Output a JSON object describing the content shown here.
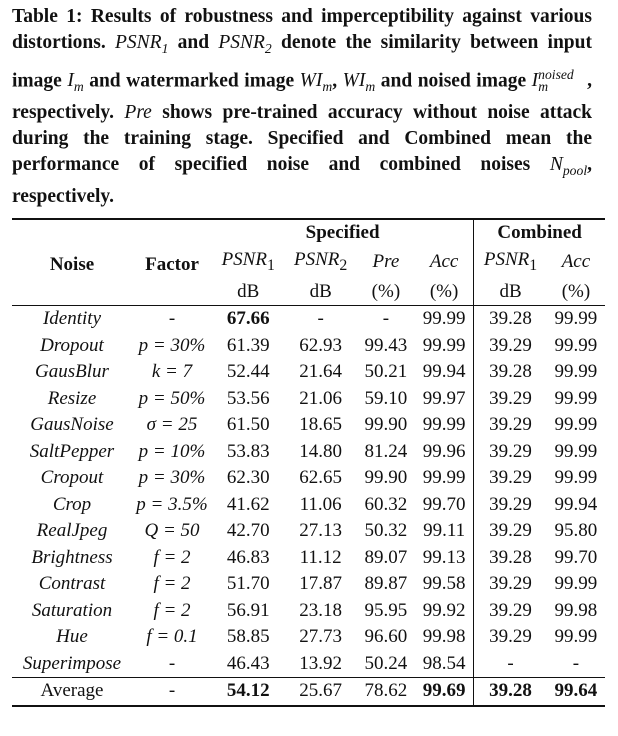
{
  "caption": {
    "label": "Table 1:",
    "text_1": " Results of robustness and imperceptibility against various distortions. ",
    "psnr1": "PSNR",
    "psnr1_sub": "1",
    "text_2": " and ",
    "psnr2": "PSNR",
    "psnr2_sub": "2",
    "text_3": " denote the similarity between input image ",
    "im": "I",
    "im_sub": "m",
    "text_4": " and watermarked image ",
    "wim": "WI",
    "wim_sub": "m",
    "text_5": ", ",
    "wim2": "WI",
    "wim2_sub": "m",
    "text_6": " and noised image ",
    "inoised": "I",
    "inoised_sub": "m",
    "inoised_sup": "noised",
    "text_7": ", respectively. ",
    "pre": "Pre",
    "text_8": " shows pre-trained accuracy without noise attack during the training stage. Specified and Combined mean the performance of specified noise and combined noises ",
    "npool": "N",
    "npool_sub": "pool",
    "text_9": ", respectively."
  },
  "table": {
    "group_specified": "Specified",
    "group_combined": "Combined",
    "col_noise": "Noise",
    "col_factor": "Factor",
    "col_psnr1": "PSNR",
    "col_psnr1_sub": "1",
    "col_psnr2": "PSNR",
    "col_psnr2_sub": "2",
    "col_pre": "Pre",
    "col_acc": "Acc",
    "col_psnr1_c": "PSNR",
    "col_psnr1_c_sub": "1",
    "col_acc_c": "Acc",
    "unit_db": "dB",
    "unit_pct": "(%)",
    "rows": [
      {
        "noise": "Identity",
        "factor": "-",
        "psnr1": "67.66",
        "psnr2": "-",
        "pre": "-",
        "acc": "99.99",
        "c_psnr1": "39.28",
        "c_acc": "99.99"
      },
      {
        "noise": "Dropout",
        "factor": "p = 30%",
        "psnr1": "61.39",
        "psnr2": "62.93",
        "pre": "99.43",
        "acc": "99.99",
        "c_psnr1": "39.29",
        "c_acc": "99.99"
      },
      {
        "noise": "GausBlur",
        "factor": "k = 7",
        "psnr1": "52.44",
        "psnr2": "21.64",
        "pre": "50.21",
        "acc": "99.94",
        "c_psnr1": "39.28",
        "c_acc": "99.99"
      },
      {
        "noise": "Resize",
        "factor": "p = 50%",
        "psnr1": "53.56",
        "psnr2": "21.06",
        "pre": "59.10",
        "acc": "99.97",
        "c_psnr1": "39.29",
        "c_acc": "99.99"
      },
      {
        "noise": "GausNoise",
        "factor": "σ = 25",
        "psnr1": "61.50",
        "psnr2": "18.65",
        "pre": "99.90",
        "acc": "99.99",
        "c_psnr1": "39.29",
        "c_acc": "99.99"
      },
      {
        "noise": "SaltPepper",
        "factor": "p = 10%",
        "psnr1": "53.83",
        "psnr2": "14.80",
        "pre": "81.24",
        "acc": "99.96",
        "c_psnr1": "39.29",
        "c_acc": "99.99"
      },
      {
        "noise": "Cropout",
        "factor": "p = 30%",
        "psnr1": "62.30",
        "psnr2": "62.65",
        "pre": "99.90",
        "acc": "99.99",
        "c_psnr1": "39.29",
        "c_acc": "99.99"
      },
      {
        "noise": "Crop",
        "factor": "p = 3.5%",
        "psnr1": "41.62",
        "psnr2": "11.06",
        "pre": "60.32",
        "acc": "99.70",
        "c_psnr1": "39.29",
        "c_acc": "99.94"
      },
      {
        "noise": "RealJpeg",
        "factor": "Q = 50",
        "psnr1": "42.70",
        "psnr2": "27.13",
        "pre": "50.32",
        "acc": "99.11",
        "c_psnr1": "39.29",
        "c_acc": "95.80"
      },
      {
        "noise": "Brightness",
        "factor": "f = 2",
        "psnr1": "46.83",
        "psnr2": "11.12",
        "pre": "89.07",
        "acc": "99.13",
        "c_psnr1": "39.28",
        "c_acc": "99.70"
      },
      {
        "noise": "Contrast",
        "factor": "f = 2",
        "psnr1": "51.70",
        "psnr2": "17.87",
        "pre": "89.87",
        "acc": "99.58",
        "c_psnr1": "39.29",
        "c_acc": "99.99"
      },
      {
        "noise": "Saturation",
        "factor": "f = 2",
        "psnr1": "56.91",
        "psnr2": "23.18",
        "pre": "95.95",
        "acc": "99.92",
        "c_psnr1": "39.29",
        "c_acc": "99.98"
      },
      {
        "noise": "Hue",
        "factor": "f = 0.1",
        "psnr1": "58.85",
        "psnr2": "27.73",
        "pre": "96.60",
        "acc": "99.98",
        "c_psnr1": "39.29",
        "c_acc": "99.99"
      },
      {
        "noise": "Superimpose",
        "factor": "-",
        "psnr1": "46.43",
        "psnr2": "13.92",
        "pre": "50.24",
        "acc": "98.54",
        "c_psnr1": "-",
        "c_acc": "-"
      }
    ],
    "average": {
      "noise": "Average",
      "factor": "-",
      "psnr1": "54.12",
      "psnr2": "25.67",
      "pre": "78.62",
      "acc": "99.69",
      "c_psnr1": "39.28",
      "c_acc": "99.64"
    }
  }
}
